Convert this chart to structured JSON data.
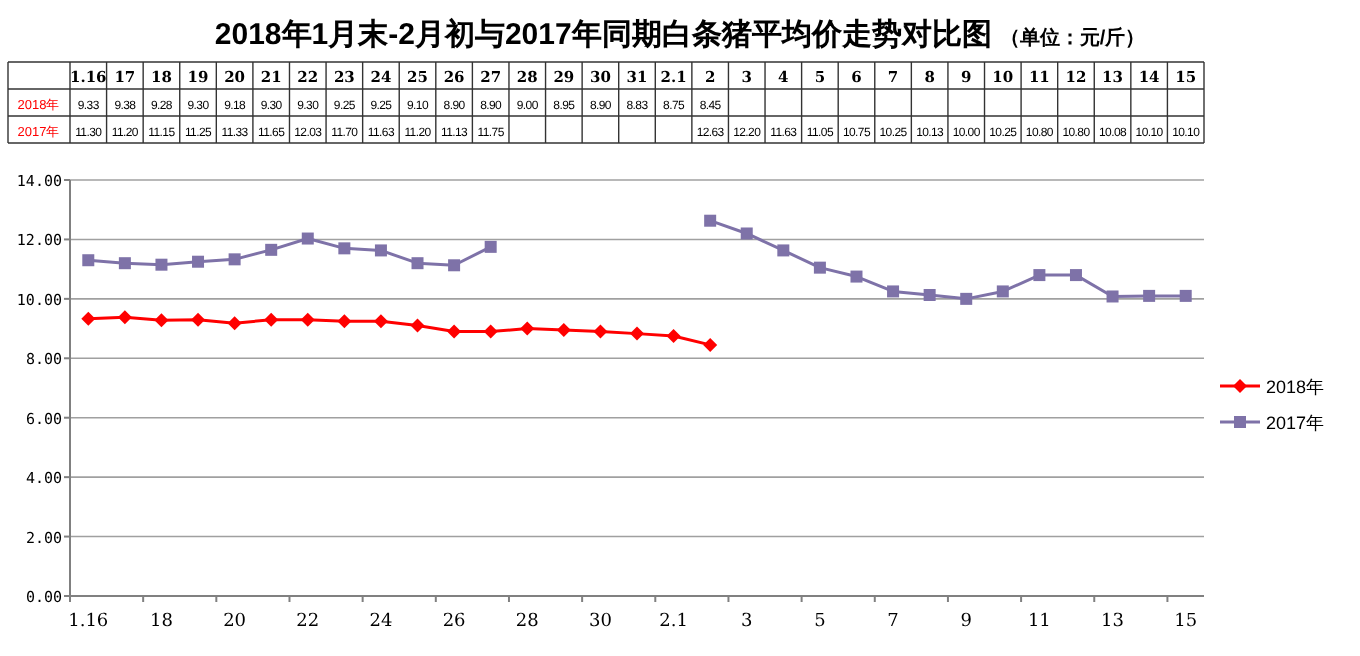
{
  "chart_data": {
    "type": "line",
    "title": "2018年1月末-2月初与2017年同期白条猪平均价走势对比图",
    "subtitle": "（单位：元/斤）",
    "categories": [
      "1.16",
      "17",
      "18",
      "19",
      "20",
      "21",
      "22",
      "23",
      "24",
      "25",
      "26",
      "27",
      "28",
      "29",
      "30",
      "31",
      "2.1",
      "2",
      "3",
      "4",
      "5",
      "6",
      "7",
      "8",
      "9",
      "10",
      "11",
      "12",
      "13",
      "14",
      "15"
    ],
    "series": [
      {
        "name": "2018年",
        "color": "#ff0000",
        "marker": "diamond",
        "values": [
          9.33,
          9.38,
          9.28,
          9.3,
          9.18,
          9.3,
          9.3,
          9.25,
          9.25,
          9.1,
          8.9,
          8.9,
          9.0,
          8.95,
          8.9,
          8.83,
          8.75,
          8.45,
          null,
          null,
          null,
          null,
          null,
          null,
          null,
          null,
          null,
          null,
          null,
          null,
          null
        ],
        "value_labels": [
          "9.33",
          "9.38",
          "9.28",
          "9.30",
          "9.18",
          "9.30",
          "9.30",
          "9.25",
          "9.25",
          "9.10",
          "8.90",
          "8.90",
          "9.00",
          "8.95",
          "8.90",
          "8.83",
          "8.75",
          "8.45",
          null,
          null,
          null,
          null,
          null,
          null,
          null,
          null,
          null,
          null,
          null,
          null,
          null
        ]
      },
      {
        "name": "2017年",
        "color": "#7e72a8",
        "marker": "square",
        "values": [
          11.3,
          11.2,
          11.15,
          11.25,
          11.33,
          11.65,
          12.03,
          11.7,
          11.63,
          11.2,
          11.13,
          11.75,
          null,
          null,
          null,
          null,
          null,
          12.63,
          12.2,
          11.63,
          11.05,
          10.75,
          10.25,
          10.13,
          10.0,
          10.25,
          10.8,
          10.8,
          10.08,
          10.1,
          10.1
        ],
        "value_labels": [
          "11.30",
          "11.20",
          "11.15",
          "11.25",
          "11.33",
          "11.65",
          "12.03",
          "11.70",
          "11.63",
          "11.20",
          "11.13",
          "11.75",
          null,
          null,
          null,
          null,
          null,
          "12.63",
          "12.20",
          "11.63",
          "11.05",
          "10.75",
          "10.25",
          "10.13",
          "10.00",
          "10.25",
          "10.80",
          "10.80",
          "10.08",
          "10.10",
          "10.10"
        ]
      }
    ],
    "ylim": [
      0,
      14
    ],
    "yticks": [
      {
        "value": 0,
        "label": "0.00"
      },
      {
        "value": 2,
        "label": "2.00"
      },
      {
        "value": 4,
        "label": "4.00"
      },
      {
        "value": 6,
        "label": "6.00"
      },
      {
        "value": 8,
        "label": "8.00"
      },
      {
        "value": 10,
        "label": "10.00"
      },
      {
        "value": 12,
        "label": "12.00"
      },
      {
        "value": 14,
        "label": "14.00"
      }
    ],
    "grid": "y",
    "legend": "right",
    "line_style": "solid"
  }
}
